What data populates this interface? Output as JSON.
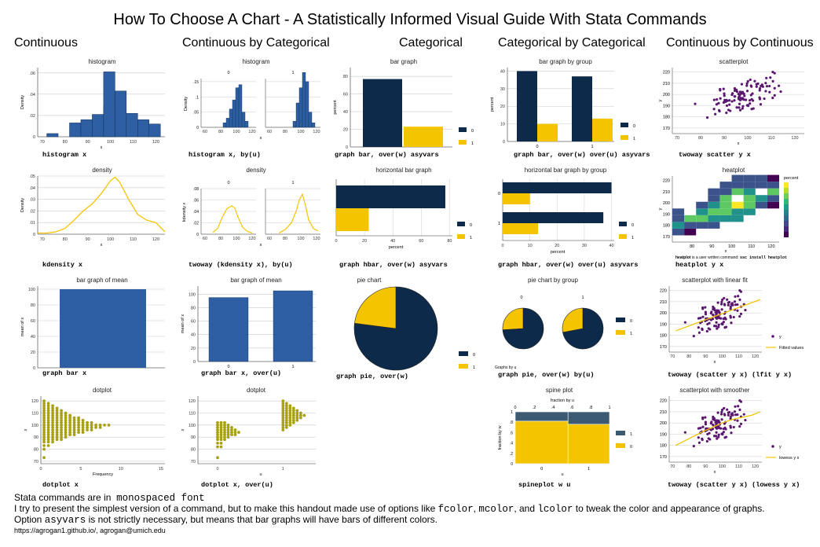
{
  "title": "How To Choose A Chart - A Statistically Informed Visual Guide With Stata Commands",
  "columns": [
    "Continuous",
    "Continuous by Categorical",
    "Categorical",
    "Categorical by Categorical",
    "Continuous by Continuous"
  ],
  "colors": {
    "blue": "#2e5fa3",
    "navy": "#0e2a4a",
    "gold": "#f5c400",
    "olive": "#a8a114",
    "purple": "#5b1670",
    "line": "#f5c400"
  },
  "commands": {
    "histogram": "histogram x",
    "histogram_by": "histogram x, by(u)",
    "bar_graph": "graph bar, over(w) asyvars",
    "bar_by_group": "graph bar, over(w) over(u) asyvars",
    "scatter": "twoway scatter y x",
    "kdensity": "kdensity x",
    "kdensity_by": "twoway (kdensity x), by(u)",
    "hbar": "graph hbar, over(w) asyvars",
    "hbar_by_group": "graph hbar, over(w) over(u) asyvars",
    "heatplot": "heatplot y x",
    "bar_mean": "graph bar x",
    "bar_mean_by": "graph bar x, over(u)",
    "pie": "graph pie, over(w)",
    "pie_by": "graph pie, over(w) by(u)",
    "lfit": "twoway (scatter y x) (lfit y x)",
    "dotplot": "dotplot x",
    "dotplot_by": "dotplot x, over(u)",
    "spineplot": "spineplot w u",
    "lowess": "twoway (scatter y x) (lowess y x)"
  },
  "heatplot_note": {
    "prefix": "heatplot",
    "middle": "is a user written command:",
    "cmd": "ssc install heatplot"
  },
  "footer": {
    "line1_text": "Stata commands are in",
    "line1_mono": "monospaced font",
    "line2_a": "I try to present the simplest version of a command, but to make this handout made use of options like",
    "line2_opt1": "fcolor",
    "line2_sep1": ",",
    "line2_opt2": "mcolor",
    "line2_sep2": ", and",
    "line2_opt3": "lcolor",
    "line2_b": "to tweak the color and appearance of graphs.",
    "line3_a": "Option",
    "line3_opt": "asyvars",
    "line3_b": "is not strictly necessary, but means that bar graphs will have bars of different colors.",
    "contact": "https://agrogan1.github.io/, agrogan@umich.edu"
  },
  "chart_data": [
    {
      "id": "hist",
      "type": "bar",
      "title": "histogram",
      "xlabel": "x",
      "ylabel": "Density",
      "xticks": [
        70,
        80,
        90,
        100,
        110,
        120
      ],
      "yticks": [
        0,
        0.02,
        0.04,
        0.06
      ],
      "ytick_labels": [
        "0",
        ".02",
        ".04",
        ".06"
      ],
      "xlim": [
        68,
        124
      ],
      "ylim": [
        0,
        0.065
      ],
      "bins": [
        [
          72,
          77,
          0.003
        ],
        [
          82,
          87,
          0.013
        ],
        [
          87,
          92,
          0.016
        ],
        [
          92,
          97,
          0.021
        ],
        [
          97,
          102,
          0.029
        ],
        [
          102,
          107,
          0.043
        ],
        [
          107,
          112,
          0.022
        ],
        [
          112,
          117,
          0.016
        ],
        [
          117,
          122,
          0.012
        ]
      ],
      "peak": [
        [
          97,
          102,
          0.061
        ]
      ]
    },
    {
      "id": "hist_by",
      "type": "bar",
      "title": "histogram",
      "panels": [
        "0",
        "1"
      ],
      "xlabel": "x",
      "ylabel": "Density",
      "xticks": [
        60,
        80,
        100,
        120
      ],
      "yticks": [
        0,
        0.05,
        0.1,
        0.15
      ],
      "ytick_labels": [
        "0",
        ".05",
        ".1",
        ".15"
      ],
      "panel0": [
        [
          83,
          87,
          0.015
        ],
        [
          87,
          91,
          0.03
        ],
        [
          91,
          95,
          0.06
        ],
        [
          95,
          99,
          0.09
        ],
        [
          99,
          103,
          0.13
        ],
        [
          103,
          107,
          0.14
        ],
        [
          107,
          111,
          0.05
        ],
        [
          111,
          115,
          0.02
        ]
      ],
      "panel1": [
        [
          90,
          94,
          0.02
        ],
        [
          94,
          98,
          0.08
        ],
        [
          98,
          102,
          0.13
        ],
        [
          102,
          106,
          0.18
        ],
        [
          106,
          110,
          0.15
        ],
        [
          110,
          114,
          0.05
        ],
        [
          114,
          118,
          0.015
        ]
      ]
    },
    {
      "id": "bar",
      "type": "bar",
      "title": "bar graph",
      "ylabel": "percent",
      "yticks": [
        0,
        20,
        40,
        60,
        80
      ],
      "series": [
        {
          "name": "0",
          "value": 77
        },
        {
          "name": "1",
          "value": 23
        }
      ]
    },
    {
      "id": "bar_group",
      "type": "bar",
      "title": "bar graph by group",
      "ylabel": "percent",
      "categories": [
        "0",
        "1"
      ],
      "yticks": [
        0,
        10,
        20,
        30,
        40
      ],
      "series": [
        {
          "name": "0",
          "values": [
            40,
            37
          ]
        },
        {
          "name": "1",
          "values": [
            10,
            13
          ]
        }
      ]
    },
    {
      "id": "scatter",
      "type": "scatter",
      "title": "scatterplot",
      "xlabel": "x",
      "ylabel": "y",
      "xticks": [
        70,
        80,
        90,
        100,
        110,
        120
      ],
      "yticks": [
        170,
        180,
        190,
        200,
        210,
        220
      ]
    },
    {
      "id": "kdens",
      "type": "line",
      "title": "density",
      "xlabel": "x",
      "ylabel": "Density",
      "xticks": [
        70,
        80,
        90,
        100,
        110,
        120
      ],
      "yticks": [
        0,
        0.01,
        0.02,
        0.03,
        0.04,
        0.05
      ],
      "ytick_labels": [
        "0",
        ".01",
        ".02",
        ".03",
        ".04",
        ".05"
      ],
      "x": [
        68,
        72,
        76,
        80,
        84,
        88,
        92,
        96,
        100,
        102,
        104,
        108,
        112,
        116,
        120,
        124
      ],
      "y": [
        0.001,
        0.001,
        0.002,
        0.005,
        0.012,
        0.02,
        0.026,
        0.035,
        0.046,
        0.049,
        0.045,
        0.03,
        0.017,
        0.012,
        0.01,
        0.002
      ]
    },
    {
      "id": "kdens_by",
      "type": "line",
      "title": "density",
      "panels": [
        "0",
        "1"
      ],
      "xlabel": "x",
      "ylabel": "kdensity x",
      "xticks": [
        60,
        80,
        100,
        120
      ],
      "yticks": [
        0,
        0.02,
        0.04,
        0.06,
        0.08
      ],
      "ytick_labels": [
        "0",
        ".02",
        ".04",
        ".06",
        ".08"
      ],
      "panel0": {
        "x": [
          70,
          76,
          82,
          88,
          94,
          98,
          102,
          108,
          114,
          120
        ],
        "y": [
          0.003,
          0.01,
          0.03,
          0.045,
          0.05,
          0.046,
          0.03,
          0.012,
          0.005,
          0.002
        ]
      },
      "panel1": {
        "x": [
          72,
          80,
          88,
          94,
          98,
          102,
          106,
          110,
          116,
          122
        ],
        "y": [
          0.002,
          0.008,
          0.02,
          0.04,
          0.06,
          0.07,
          0.05,
          0.025,
          0.01,
          0.006
        ]
      }
    },
    {
      "id": "hbar",
      "type": "bar",
      "title": "horizontal bar graph",
      "xlabel": "percent",
      "xticks": [
        0,
        20,
        40,
        60,
        80
      ],
      "series": [
        {
          "name": "0",
          "value": 77
        },
        {
          "name": "1",
          "value": 23
        }
      ]
    },
    {
      "id": "hbar_group",
      "type": "bar",
      "title": "horizontal bar graph by group",
      "xlabel": "percent",
      "categories": [
        "0",
        "1"
      ],
      "xticks": [
        0,
        10,
        20,
        30,
        40
      ],
      "series": [
        {
          "name": "0",
          "values": [
            40,
            37
          ]
        },
        {
          "name": "1",
          "values": [
            10,
            13
          ]
        }
      ]
    },
    {
      "id": "heat",
      "type": "heatmap",
      "title": "heatplot",
      "xlabel": "x",
      "ylabel": "y",
      "xticks": [
        80,
        90,
        100,
        110,
        120
      ],
      "yticks": [
        170,
        180,
        190,
        200,
        210,
        220
      ],
      "legend_title": "percent"
    },
    {
      "id": "barmean",
      "type": "bar",
      "title": "bar graph of mean",
      "ylabel": "mean of x",
      "yticks": [
        0,
        20,
        40,
        60,
        80,
        100
      ],
      "values": [
        100
      ]
    },
    {
      "id": "barmean_by",
      "type": "bar",
      "title": "bar graph of mean",
      "ylabel": "mean of x",
      "categories": [
        "0",
        "1"
      ],
      "yticks": [
        0,
        20,
        40,
        60,
        80,
        100
      ],
      "values": [
        95,
        105
      ]
    },
    {
      "id": "pie",
      "type": "pie",
      "title": "pie chart",
      "legend": [
        "0",
        "1"
      ],
      "values": [
        77,
        23
      ]
    },
    {
      "id": "pie_by",
      "type": "pie",
      "title": "pie chart by group",
      "panels": [
        "0",
        "1"
      ],
      "values0": [
        74,
        26
      ],
      "values1": [
        72,
        28
      ],
      "note": "Graphs by u",
      "legend": [
        "0",
        "1"
      ]
    },
    {
      "id": "lfit",
      "type": "scatter",
      "title": "scatterplot with linear fit",
      "xlabel": "x",
      "xticks": [
        70,
        80,
        90,
        100,
        110,
        120
      ],
      "yticks": [
        170,
        180,
        190,
        200,
        210,
        220
      ],
      "legend": [
        "y",
        "Fitted values"
      ]
    },
    {
      "id": "dot",
      "type": "scatter",
      "title": "dotplot",
      "xlabel": "Frequency",
      "ylabel": "x",
      "xticks": [
        0,
        5,
        10,
        15
      ],
      "yticks": [
        70,
        80,
        90,
        100,
        110,
        120
      ]
    },
    {
      "id": "dot_by",
      "type": "scatter",
      "title": "dotplot",
      "xlabel": "u",
      "ylabel": "x",
      "xticks": [
        0,
        1
      ],
      "yticks": [
        70,
        80,
        90,
        100,
        110,
        120
      ]
    },
    {
      "id": "spine",
      "type": "bar",
      "title": "spine plot",
      "top_label": "fraction by u",
      "ylabel": "fraction by w",
      "xlabel": "u",
      "xticks": [
        0,
        1
      ],
      "top_ticks": [
        "0",
        ".2",
        ".4",
        ".6",
        ".8",
        "1"
      ],
      "left_ticks": [
        "0",
        ".2",
        ".4",
        ".6",
        ".8",
        "1"
      ],
      "legend": [
        "1",
        "0"
      ],
      "widths": [
        0.56,
        0.44
      ],
      "frac0": [
        0.82,
        0.76
      ]
    },
    {
      "id": "lowess",
      "type": "scatter",
      "title": "scatterplot with smoother",
      "xlabel": "x",
      "xticks": [
        70,
        80,
        90,
        100,
        110,
        120
      ],
      "yticks": [
        170,
        180,
        190,
        200,
        210,
        220
      ],
      "legend": [
        "y",
        "lowess y x"
      ]
    }
  ]
}
